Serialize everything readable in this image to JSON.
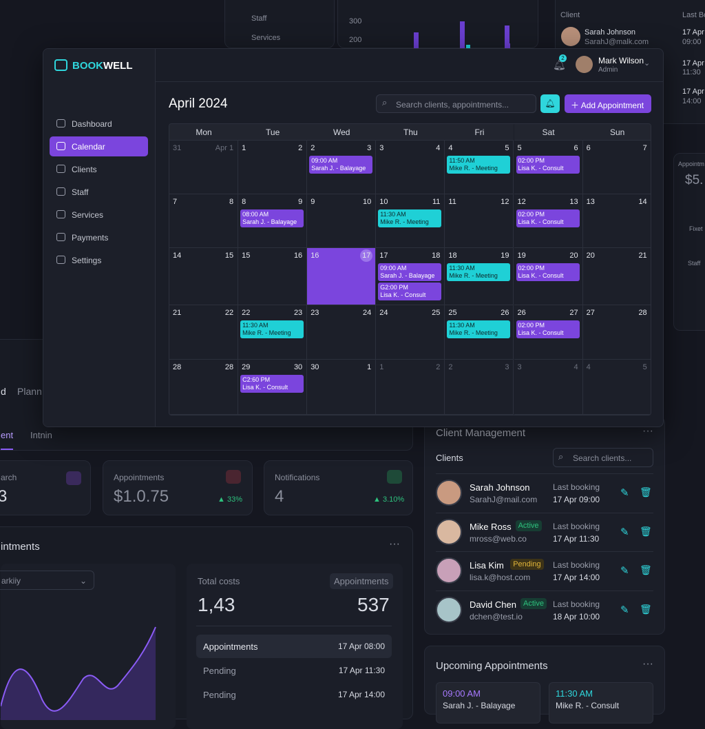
{
  "background": {
    "top_nav": [
      "Staff",
      "Services"
    ],
    "top_chart_ticks": [
      "300",
      "200"
    ],
    "top_table": {
      "headers": [
        "Client",
        "Last Bo"
      ],
      "name": "Sarah Johnson",
      "email": "SarahJ@malk.com",
      "date": "17 Apr",
      "time": "09:00",
      "rows": [
        [
          "17 Apr",
          "11:30"
        ],
        [
          "17 Apr",
          "14:00"
        ]
      ]
    },
    "side_card": {
      "label": "Appointm",
      "value": "$5.",
      "items": [
        "Fixet",
        "Staff"
      ]
    }
  },
  "app": {
    "brand_a": "BOOK",
    "brand_b": "WELL",
    "nav": [
      "Dashboard",
      "Calendar",
      "Clients",
      "Staff",
      "Services",
      "Payments",
      "Settings"
    ],
    "active_nav": 1,
    "badge": "2",
    "user_name": "Mark Wilson",
    "user_role": "Admin"
  },
  "calendar": {
    "title": "April 2024",
    "search": "Search clients, appointments...",
    "add": "Add Appointment",
    "weekdays": [
      "Mon",
      "Tue",
      "Wed",
      "Thu",
      "Fri",
      "Sat",
      "Sun"
    ],
    "selected": [
      2,
      2
    ],
    "weeks": [
      [
        {
          "l": "31",
          "r": "Apr 1",
          "muted": true,
          "events": []
        },
        {
          "l": "1",
          "r": "2",
          "events": []
        },
        {
          "l": "2",
          "r": "3",
          "events": [
            {
              "time": "09:00 AM",
              "title": "Sarah J. - Balayage",
              "color": "#7b45dd"
            }
          ]
        },
        {
          "l": "3",
          "r": "4",
          "events": []
        },
        {
          "l": "4",
          "r": "5",
          "events": [
            {
              "time": "11:50 AM",
              "title": "Mike R. - Meeting",
              "color": "#1fd0d6"
            }
          ]
        },
        {
          "l": "5",
          "r": "6",
          "events": [
            {
              "time": "02:00 PM",
              "title": "Lisa K. - Consult",
              "color": "#7b45dd"
            }
          ]
        },
        {
          "l": "6",
          "r": "7",
          "events": []
        }
      ],
      [
        {
          "l": "7",
          "r": "8",
          "events": []
        },
        {
          "l": "8",
          "r": "9",
          "events": [
            {
              "time": "08:00 AM",
              "title": "Sarah J. - Balayage",
              "color": "#7b45dd"
            }
          ]
        },
        {
          "l": "9",
          "r": "10",
          "events": []
        },
        {
          "l": "10",
          "r": "11",
          "events": [
            {
              "time": "11:30 AM",
              "title": "Mike R. - Meeting",
              "color": "#1fd0d6"
            }
          ]
        },
        {
          "l": "11",
          "r": "12",
          "events": []
        },
        {
          "l": "12",
          "r": "13",
          "events": [
            {
              "time": "02:00 PM",
              "title": "Lisa K. - Consult",
              "color": "#7b45dd"
            }
          ]
        },
        {
          "l": "13",
          "r": "14",
          "events": []
        }
      ],
      [
        {
          "l": "14",
          "r": "15",
          "events": []
        },
        {
          "l": "15",
          "r": "16",
          "events": []
        },
        {
          "l": "16",
          "r": "17",
          "events": []
        },
        {
          "l": "17",
          "r": "18",
          "events": [
            {
              "time": "09:00 AM",
              "title": "Sarah J. - Balayage",
              "color": "#7b45dd"
            },
            {
              "time": "G2:00 PM",
              "title": "Lisa K. - Consult",
              "color": "#7b45dd"
            }
          ]
        },
        {
          "l": "18",
          "r": "19",
          "events": [
            {
              "time": "11:30 AM",
              "title": "Mike R. - Meeting",
              "color": "#1fd0d6"
            }
          ]
        },
        {
          "l": "19",
          "r": "20",
          "events": [
            {
              "time": "02:00 PM",
              "title": "Lisa K. - Consult",
              "color": "#7b45dd"
            }
          ]
        },
        {
          "l": "20",
          "r": "21",
          "events": []
        }
      ],
      [
        {
          "l": "21",
          "r": "22",
          "events": []
        },
        {
          "l": "22",
          "r": "23",
          "events": [
            {
              "time": "11:30 AM",
              "title": "Mike R. - Meeting",
              "color": "#1fd0d6"
            }
          ]
        },
        {
          "l": "23",
          "r": "24",
          "events": []
        },
        {
          "l": "24",
          "r": "25",
          "events": []
        },
        {
          "l": "25",
          "r": "26",
          "events": [
            {
              "time": "11:30 AM",
              "title": "Mike R. - Meeting",
              "color": "#1fd0d6"
            }
          ]
        },
        {
          "l": "26",
          "r": "27",
          "events": [
            {
              "time": "02:00 PM",
              "title": "Lisa K. - Consult",
              "color": "#7b45dd"
            }
          ]
        },
        {
          "l": "27",
          "r": "28",
          "events": []
        }
      ],
      [
        {
          "l": "28",
          "r": "28",
          "events": []
        },
        {
          "l": "29",
          "r": "30",
          "events": [
            {
              "time": "C2:60 PM",
              "title": "Lisa K. - Consult",
              "color": "#7b45dd"
            }
          ]
        },
        {
          "l": "30",
          "r": "1",
          "events": []
        },
        {
          "l": "1",
          "r": "2",
          "muted": true,
          "events": []
        },
        {
          "l": "2",
          "r": "3",
          "muted": true,
          "events": []
        },
        {
          "l": "3",
          "r": "4",
          "muted": true,
          "events": []
        },
        {
          "l": "4",
          "r": "5",
          "muted": true,
          "events": []
        }
      ]
    ]
  },
  "dashboard": {
    "tabs_top": [
      "d",
      "Plann"
    ],
    "tabs": [
      "ent",
      "Intnin"
    ],
    "stats": [
      {
        "label": "arch",
        "value": "3"
      },
      {
        "label": "Appointments",
        "value": "$1.0.75",
        "change": "33%"
      },
      {
        "label": "Notifications",
        "value": "4",
        "change": "3.10%"
      }
    ],
    "section": "intments",
    "filter": "arkiiy",
    "totals": {
      "left_label": "Total costs",
      "left_value": "1,43",
      "right_label": "Appointments",
      "right_value": "537",
      "rows": [
        [
          "Appointments",
          "17 Apr 08:00"
        ],
        [
          "Pending",
          "17 Apr  11:30"
        ],
        [
          "Pending",
          "17 Apr 14:00"
        ]
      ]
    }
  },
  "clients": {
    "title": "Client Management",
    "subtitle": "Clients",
    "search": "Search clients...",
    "label": "Last booking",
    "rows": [
      {
        "name": "Sarah Johnson",
        "email": "SarahJ@mail.com",
        "date": "17 Apr 09:00"
      },
      {
        "name": "Mike Ross",
        "status": "Active",
        "email": "mross@web.co",
        "date": "17 Apr 11:30"
      },
      {
        "name": "Lisa Kim",
        "status": "Pending",
        "email": "lisa.k@host.com",
        "date": "17 Apr 14:00"
      },
      {
        "name": "David Chen",
        "status": "Active",
        "email": "dchen@test.io",
        "date": "18 Apr 10:00"
      }
    ]
  },
  "upcoming": {
    "title": "Upcoming Appointments",
    "cards": [
      {
        "time": "09:00 AM",
        "title": "Sarah J. - Balayage",
        "color": "#a779ff"
      },
      {
        "time": "11:30 AM",
        "title": "Mike R. - Consult",
        "color": "#2fd6dc"
      }
    ]
  }
}
